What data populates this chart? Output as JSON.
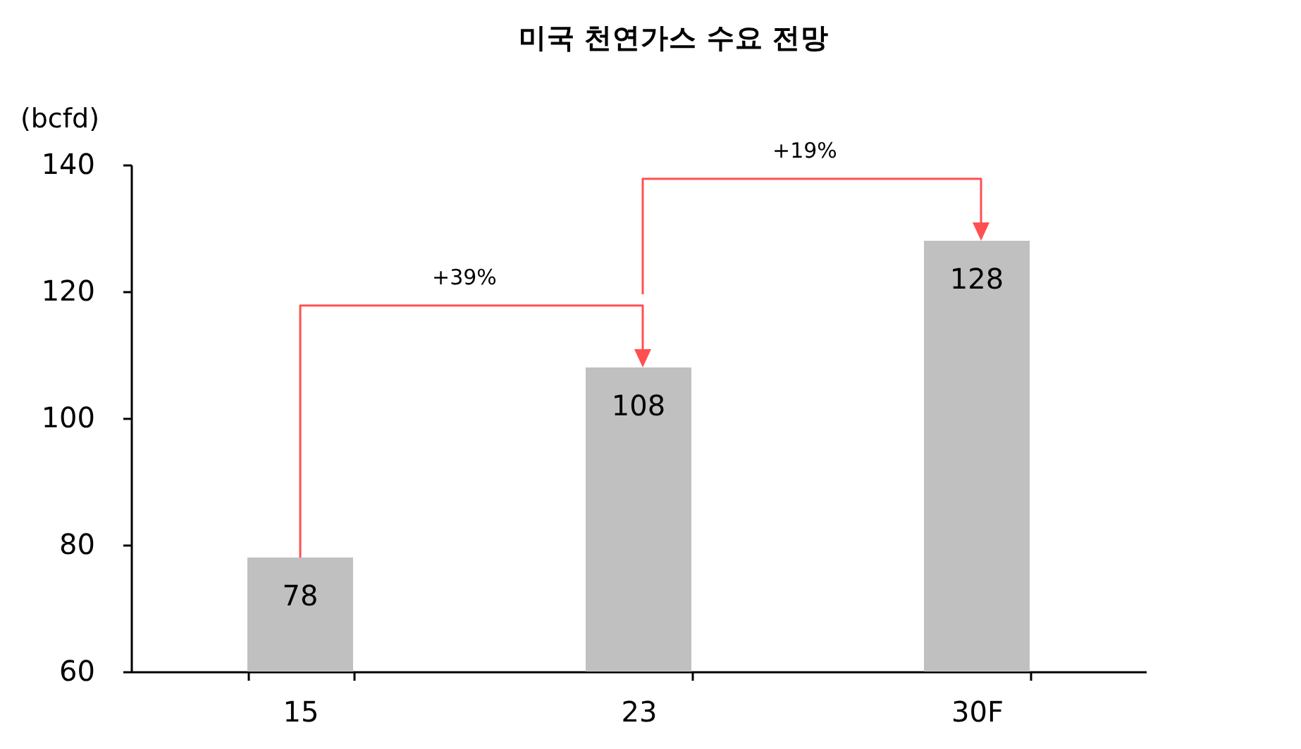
{
  "chart_data": {
    "type": "bar",
    "title": "미국 천연가스 수요 전망",
    "ylabel": "(bcfd)",
    "categories": [
      "15",
      "23",
      "30F"
    ],
    "values": [
      78,
      108,
      128
    ],
    "color": "#c0c0c0",
    "ylim": [
      60,
      140
    ],
    "yticks": [
      60,
      80,
      100,
      120,
      140
    ],
    "data_labels": true,
    "annotations": [
      "+39%",
      "+19%"
    ]
  }
}
